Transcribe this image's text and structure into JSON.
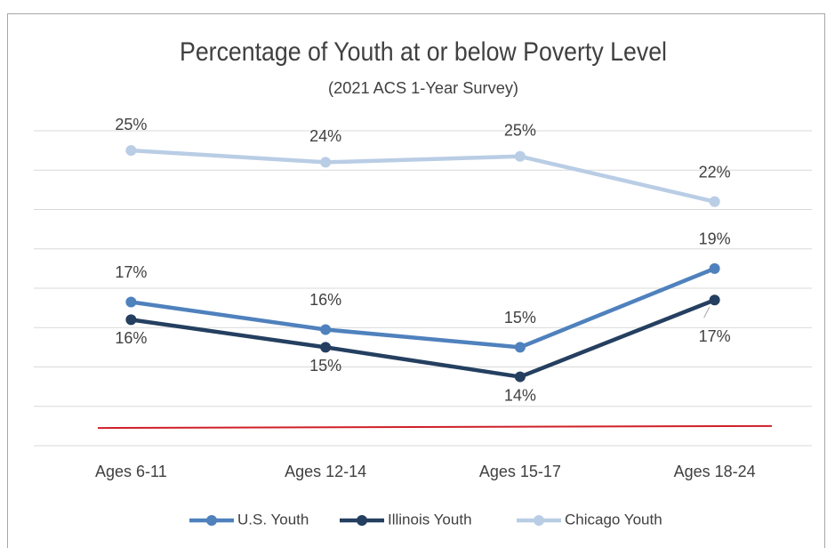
{
  "chart_data": {
    "type": "line",
    "title": "Percentage of Youth at or below Poverty Level",
    "subtitle": "(2021 ACS 1-Year Survey)",
    "categories": [
      "Ages 6-11",
      "Ages 12-14",
      "Ages 15-17",
      "Ages 18-24"
    ],
    "series": [
      {
        "name": "U.S. Youth",
        "color": "#4f81bd",
        "values": [
          17.3,
          15.9,
          15.0,
          19.0
        ],
        "value_labels": [
          "17%",
          "16%",
          "15%",
          "19%"
        ]
      },
      {
        "name": "Illinois Youth",
        "color": "#243f60",
        "values": [
          16.4,
          15.0,
          13.5,
          17.4
        ],
        "value_labels": [
          "16%",
          "15%",
          "14%",
          "17%"
        ]
      },
      {
        "name": "Chicago Youth",
        "color": "#b9cde5",
        "values": [
          25.0,
          24.4,
          24.7,
          22.4
        ],
        "value_labels": [
          "25%",
          "24%",
          "25%",
          "22%"
        ]
      }
    ],
    "reference_line": {
      "color": "#d0202a",
      "values": [
        10.9,
        11.0
      ]
    },
    "ylim": [
      10,
      26
    ],
    "yticks": [
      10,
      12,
      14,
      16,
      18,
      20,
      22,
      24,
      26
    ],
    "grid": true,
    "legend": "bottom"
  }
}
